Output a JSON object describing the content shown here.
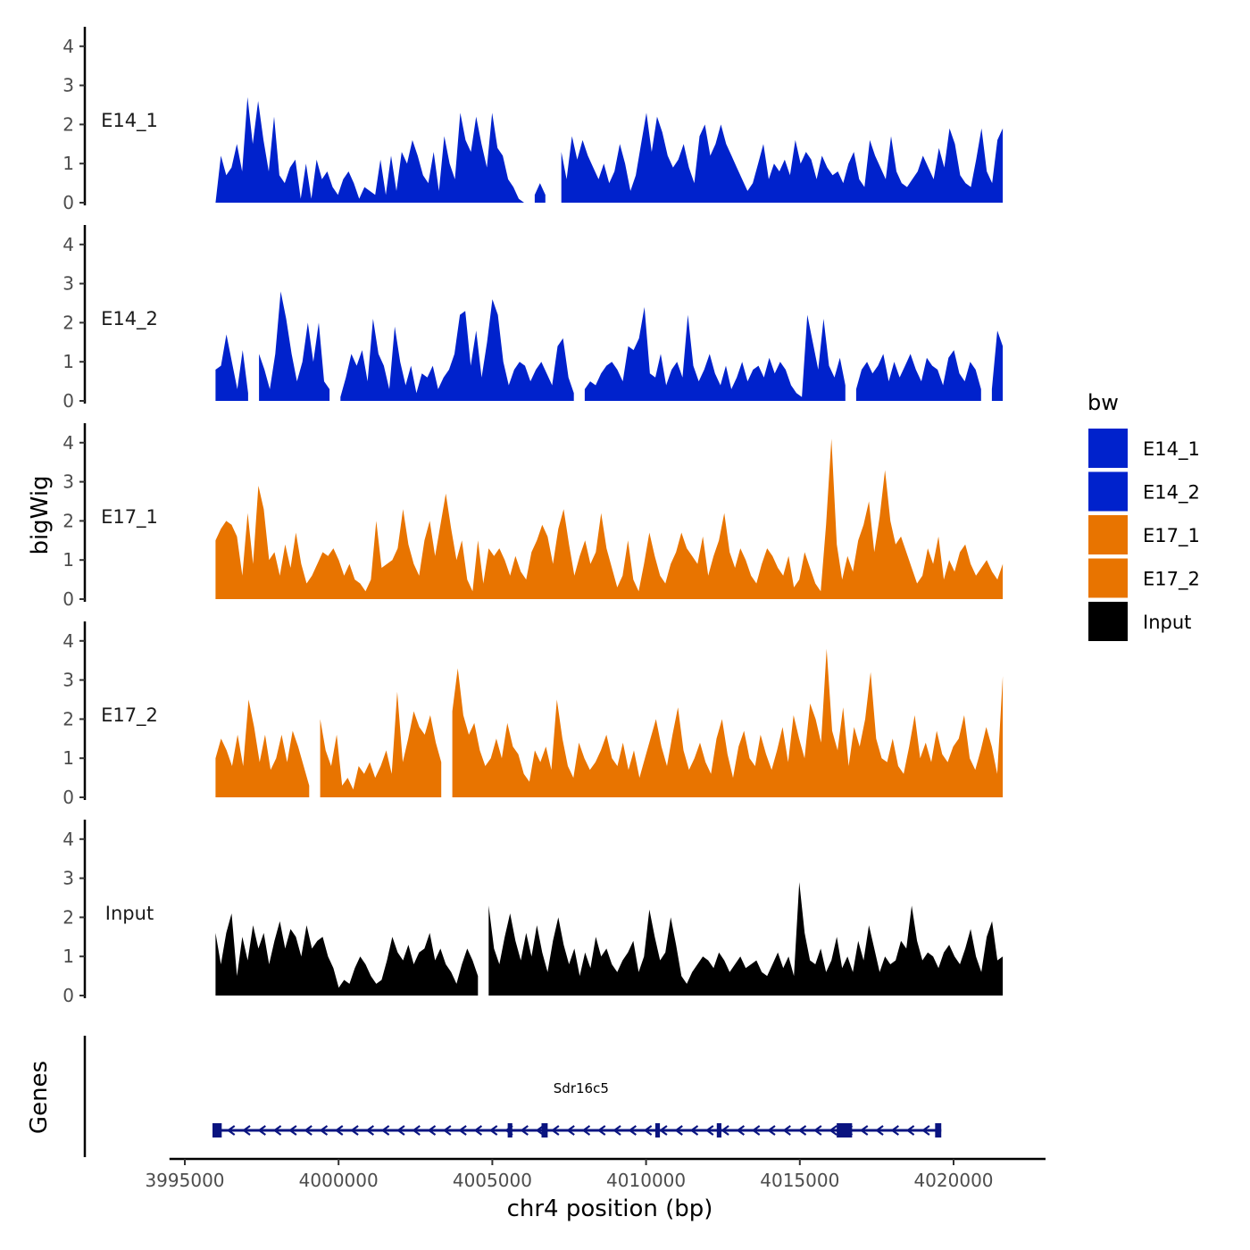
{
  "chart_data": {
    "type": "area",
    "ylabel": "bigWig",
    "xlabel": "chr4 position (bp)",
    "xlim": [
      3994500,
      4023000
    ],
    "ylim": [
      0,
      4.5
    ],
    "yticks": [
      0,
      1,
      2,
      3,
      4
    ],
    "xticks": [
      3995000,
      4000000,
      4005000,
      4010000,
      4015000,
      4020000
    ],
    "xtick_labels": [
      "3995000",
      "4000000",
      "4005000",
      "4010000",
      "4015000",
      "4020000"
    ],
    "data_range": [
      3996000,
      4021600
    ],
    "legend": {
      "title": "bw",
      "placement": "right",
      "entries": [
        {
          "name": "E14_1",
          "color": "#0022CC"
        },
        {
          "name": "E14_2",
          "color": "#0022CC"
        },
        {
          "name": "E17_1",
          "color": "#E87400"
        },
        {
          "name": "E17_2",
          "color": "#E87400"
        },
        {
          "name": "Input",
          "color": "#000000"
        }
      ]
    },
    "series": [
      {
        "name": "E14_1",
        "color": "#0022CC",
        "values": [
          0.0,
          1.2,
          0.7,
          0.9,
          1.5,
          0.8,
          2.7,
          1.5,
          2.6,
          1.6,
          0.8,
          2.2,
          0.7,
          0.5,
          0.9,
          1.1,
          0.1,
          1.0,
          0.1,
          1.1,
          0.6,
          0.8,
          0.4,
          0.2,
          0.6,
          0.8,
          0.5,
          0.1,
          0.4,
          0.3,
          0.2,
          1.1,
          0.2,
          1.2,
          0.3,
          1.3,
          1.0,
          1.6,
          1.2,
          0.7,
          0.5,
          1.3,
          0.3,
          1.7,
          1.0,
          0.6,
          2.3,
          1.6,
          1.3,
          2.2,
          1.5,
          0.9,
          2.3,
          1.4,
          1.2,
          0.6,
          0.4,
          0.1,
          0.0,
          null,
          0.2,
          0.5,
          0.2,
          null,
          null,
          1.3,
          0.6,
          1.7,
          1.1,
          1.6,
          1.2,
          0.9,
          0.6,
          1.0,
          0.5,
          0.8,
          1.5,
          1.0,
          0.3,
          0.7,
          1.5,
          2.3,
          1.3,
          2.2,
          1.8,
          1.2,
          0.9,
          1.1,
          1.5,
          0.9,
          0.5,
          1.7,
          2.0,
          1.2,
          1.5,
          2.0,
          1.5,
          1.2,
          0.9,
          0.6,
          0.3,
          0.5,
          1.0,
          1.5,
          0.6,
          1.0,
          0.8,
          1.1,
          0.7,
          1.6,
          1.0,
          1.3,
          1.1,
          0.6,
          1.2,
          0.9,
          0.7,
          0.8,
          0.5,
          1.0,
          1.3,
          0.6,
          0.4,
          1.6,
          1.2,
          0.9,
          0.6,
          1.7,
          0.8,
          0.5,
          0.4,
          0.6,
          0.8,
          1.2,
          0.9,
          0.6,
          1.4,
          0.9,
          1.9,
          1.5,
          0.7,
          0.5,
          0.4,
          1.1,
          1.9,
          0.8,
          0.5,
          1.6,
          1.9
        ]
      },
      {
        "name": "E14_2",
        "color": "#0022CC",
        "values": [
          0.8,
          0.9,
          1.7,
          1.0,
          0.3,
          1.3,
          0.2,
          null,
          1.2,
          0.8,
          0.3,
          1.2,
          2.8,
          2.1,
          1.2,
          0.5,
          1.0,
          2.0,
          1.0,
          2.0,
          0.5,
          0.3,
          null,
          0.1,
          0.6,
          1.2,
          0.9,
          1.3,
          0.5,
          2.1,
          1.2,
          0.9,
          0.3,
          1.9,
          1.0,
          0.4,
          0.9,
          0.2,
          0.7,
          0.6,
          0.9,
          0.3,
          0.6,
          0.8,
          1.2,
          2.2,
          2.3,
          0.9,
          1.8,
          0.6,
          1.5,
          2.6,
          2.2,
          1.0,
          0.4,
          0.8,
          1.0,
          0.9,
          0.5,
          0.8,
          1.0,
          0.7,
          0.4,
          1.4,
          1.6,
          0.6,
          0.2,
          null,
          0.3,
          0.5,
          0.4,
          0.7,
          0.9,
          1.0,
          0.8,
          0.5,
          1.4,
          1.3,
          1.6,
          2.4,
          0.7,
          0.6,
          1.2,
          0.4,
          0.8,
          1.0,
          0.6,
          2.2,
          0.9,
          0.5,
          0.8,
          1.2,
          0.7,
          0.4,
          0.9,
          0.3,
          0.6,
          1.0,
          0.5,
          0.8,
          0.9,
          0.6,
          1.1,
          0.7,
          1.0,
          0.8,
          0.4,
          0.2,
          0.1,
          2.2,
          1.5,
          0.8,
          2.1,
          0.9,
          0.6,
          1.1,
          0.4,
          null,
          0.3,
          0.8,
          1.0,
          0.7,
          0.9,
          1.2,
          0.5,
          1.0,
          0.6,
          0.9,
          1.2,
          0.8,
          0.5,
          1.1,
          0.9,
          0.8,
          0.4,
          1.1,
          1.3,
          0.7,
          0.5,
          1.0,
          0.8,
          0.3,
          null,
          0.3,
          1.8,
          1.4
        ]
      },
      {
        "name": "E17_1",
        "color": "#E87400",
        "values": [
          1.5,
          1.8,
          2.0,
          1.9,
          1.6,
          0.6,
          2.2,
          0.9,
          2.9,
          2.3,
          1.0,
          1.2,
          0.6,
          1.4,
          0.8,
          1.7,
          0.9,
          0.4,
          0.6,
          0.9,
          1.2,
          1.1,
          1.3,
          1.0,
          0.6,
          0.9,
          0.5,
          0.4,
          0.2,
          0.5,
          2.0,
          0.8,
          0.9,
          1.0,
          1.3,
          2.3,
          1.4,
          0.9,
          0.6,
          1.5,
          2.0,
          1.1,
          1.9,
          2.7,
          1.8,
          1.0,
          1.5,
          0.5,
          0.2,
          1.5,
          0.4,
          1.3,
          1.1,
          1.3,
          1.0,
          0.6,
          1.1,
          0.7,
          0.5,
          1.2,
          1.5,
          1.9,
          1.6,
          0.9,
          1.8,
          2.3,
          1.4,
          0.6,
          1.1,
          1.5,
          0.9,
          1.2,
          2.2,
          1.3,
          0.8,
          0.3,
          0.6,
          1.5,
          0.5,
          0.2,
          0.9,
          1.7,
          1.1,
          0.6,
          0.4,
          0.9,
          1.2,
          1.7,
          1.3,
          1.1,
          0.9,
          1.6,
          0.6,
          1.1,
          1.5,
          2.2,
          1.2,
          0.8,
          1.3,
          1.0,
          0.6,
          0.4,
          0.9,
          1.3,
          1.1,
          0.8,
          0.6,
          1.1,
          0.3,
          0.5,
          1.2,
          0.8,
          0.4,
          0.2,
          1.9,
          4.1,
          1.4,
          0.5,
          1.1,
          0.7,
          1.5,
          1.9,
          2.5,
          1.2,
          2.1,
          3.3,
          2.0,
          1.4,
          1.6,
          1.2,
          0.8,
          0.4,
          0.6,
          1.3,
          0.9,
          1.6,
          0.5,
          1.0,
          0.7,
          1.2,
          1.4,
          0.9,
          0.6,
          0.8,
          1.0,
          0.7,
          0.5,
          0.9
        ]
      },
      {
        "name": "E17_2",
        "color": "#E87400",
        "values": [
          1.0,
          1.5,
          1.2,
          0.8,
          1.6,
          0.8,
          2.5,
          1.8,
          0.9,
          1.6,
          0.7,
          1.0,
          1.6,
          0.9,
          1.7,
          1.3,
          0.8,
          0.3,
          null,
          2.0,
          1.2,
          0.8,
          1.6,
          0.3,
          0.5,
          0.2,
          0.8,
          0.6,
          0.9,
          0.5,
          0.8,
          1.2,
          0.6,
          2.7,
          0.9,
          1.5,
          2.2,
          1.8,
          1.6,
          2.1,
          1.4,
          0.9,
          null,
          2.2,
          3.3,
          2.1,
          1.6,
          1.9,
          1.2,
          0.8,
          1.0,
          1.5,
          1.0,
          1.9,
          1.3,
          1.1,
          0.6,
          0.4,
          1.2,
          0.9,
          1.3,
          0.7,
          2.5,
          1.5,
          0.8,
          0.5,
          1.4,
          1.0,
          0.7,
          0.9,
          1.2,
          1.6,
          1.0,
          0.8,
          1.4,
          0.7,
          1.2,
          0.5,
          1.0,
          1.5,
          2.0,
          1.3,
          0.8,
          1.6,
          2.3,
          1.2,
          0.7,
          1.0,
          1.4,
          0.9,
          0.6,
          1.5,
          2.0,
          1.1,
          0.5,
          1.3,
          1.7,
          1.0,
          0.8,
          1.6,
          1.1,
          0.7,
          1.2,
          1.8,
          0.9,
          2.1,
          1.5,
          1.0,
          2.4,
          2.0,
          1.4,
          3.8,
          1.7,
          1.2,
          2.3,
          0.8,
          1.8,
          1.3,
          2.0,
          3.2,
          1.5,
          1.0,
          0.9,
          1.5,
          0.8,
          0.6,
          1.3,
          2.1,
          1.0,
          1.4,
          0.9,
          1.7,
          1.1,
          0.9,
          1.3,
          1.5,
          2.1,
          1.0,
          0.7,
          1.2,
          1.8,
          1.3,
          0.6,
          3.1
        ]
      },
      {
        "name": "Input",
        "color": "#000000",
        "values": [
          1.6,
          0.8,
          1.6,
          2.1,
          0.5,
          1.5,
          0.9,
          1.8,
          1.2,
          1.6,
          0.8,
          1.4,
          1.9,
          1.2,
          1.7,
          1.5,
          1.0,
          1.8,
          1.2,
          1.4,
          1.5,
          1.0,
          0.7,
          0.2,
          0.4,
          0.3,
          0.7,
          1.0,
          0.8,
          0.5,
          0.3,
          0.4,
          0.9,
          1.5,
          1.1,
          0.9,
          1.3,
          0.8,
          1.1,
          1.2,
          1.6,
          0.9,
          1.2,
          0.8,
          0.6,
          0.3,
          0.8,
          1.2,
          0.9,
          0.5,
          null,
          2.3,
          1.2,
          0.8,
          1.5,
          2.1,
          1.4,
          0.9,
          1.6,
          1.0,
          1.8,
          1.1,
          0.6,
          1.4,
          2.0,
          1.3,
          0.8,
          1.2,
          0.5,
          1.1,
          0.7,
          1.5,
          1.0,
          1.2,
          0.8,
          0.6,
          0.9,
          1.1,
          1.4,
          0.6,
          1.0,
          2.2,
          1.5,
          0.9,
          1.1,
          2.0,
          1.3,
          0.5,
          0.3,
          0.6,
          0.8,
          1.0,
          0.9,
          0.7,
          1.1,
          0.9,
          0.6,
          0.8,
          1.0,
          0.7,
          0.8,
          0.9,
          0.6,
          0.5,
          0.8,
          1.1,
          0.7,
          1.0,
          0.5,
          2.9,
          1.6,
          0.9,
          0.8,
          1.2,
          0.6,
          0.9,
          1.5,
          0.7,
          1.0,
          0.6,
          1.4,
          0.9,
          1.8,
          1.2,
          0.6,
          1.0,
          0.8,
          0.9,
          1.4,
          1.2,
          2.3,
          1.4,
          0.9,
          1.1,
          1.0,
          0.7,
          1.1,
          1.3,
          1.0,
          0.8,
          1.2,
          1.7,
          1.0,
          0.6,
          1.5,
          1.9,
          0.9,
          1.0
        ]
      }
    ],
    "genes": {
      "title": "Genes",
      "color": "#0A1480",
      "items": [
        {
          "name": "Sdr16c5",
          "start": 3996000,
          "end": 4019600,
          "strand": "-",
          "exons": [
            [
              3995900,
              3996200
            ],
            [
              4005500,
              4005650
            ],
            [
              4006600,
              4006800
            ],
            [
              4010300,
              4010450
            ],
            [
              4012300,
              4012450
            ],
            [
              4016200,
              4016700
            ],
            [
              4019400,
              4019600
            ]
          ]
        }
      ]
    }
  }
}
